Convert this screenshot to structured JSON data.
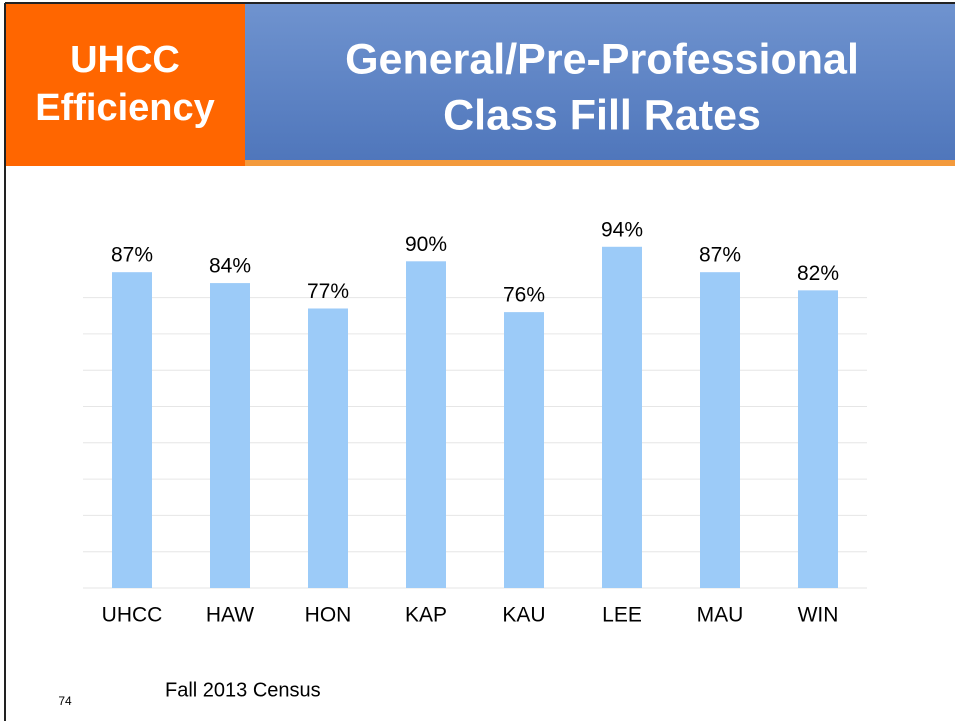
{
  "badge": {
    "line1": "UHCC",
    "line2": "Efficiency"
  },
  "slide_number": "74",
  "source": "Fall 2013 Census",
  "chart_data": {
    "type": "bar",
    "title": [
      "General/Pre-Professional",
      "Class Fill Rates"
    ],
    "categories": [
      "UHCC",
      "HAW",
      "HON",
      "KAP",
      "KAU",
      "LEE",
      "MAU",
      "WIN"
    ],
    "values": [
      87,
      84,
      77,
      90,
      76,
      94,
      87,
      82
    ],
    "value_labels": [
      "87%",
      "84%",
      "77%",
      "90%",
      "76%",
      "94%",
      "87%",
      "82%"
    ],
    "color": "#9ccbf8",
    "ylim": [
      0,
      100
    ],
    "yticks": [
      0,
      10,
      20,
      30,
      40,
      50,
      60,
      70,
      80
    ],
    "grid": true
  }
}
